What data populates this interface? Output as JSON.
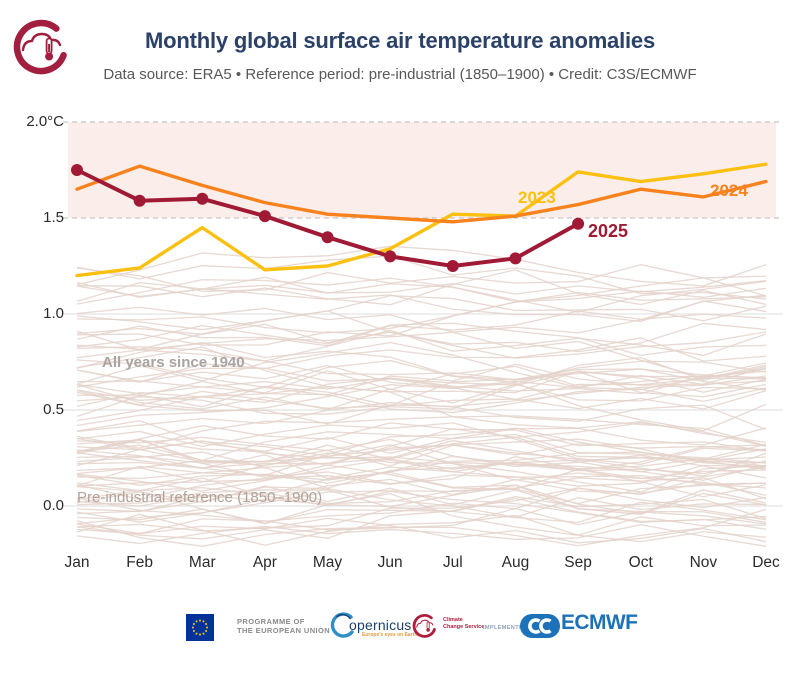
{
  "header": {
    "title": "Monthly global surface air temperature anomalies",
    "subtitle": "Data source: ERA5 • Reference period: pre-industrial (1850–1900) • Credit: C3S/ECMWF"
  },
  "chart_data": {
    "type": "line",
    "title": "Monthly global surface air temperature anomalies",
    "unit": "°C",
    "categories": [
      "Jan",
      "Feb",
      "Mar",
      "Apr",
      "May",
      "Jun",
      "Jul",
      "Aug",
      "Sep",
      "Oct",
      "Nov",
      "Dec"
    ],
    "ylim": [
      -0.25,
      2.05
    ],
    "y_ticks": [
      {
        "label": "2.0°C",
        "value": 2.0,
        "grid": "dashed"
      },
      {
        "label": "1.5",
        "value": 1.5,
        "grid": "dashed"
      },
      {
        "label": "1.0",
        "value": 1.0,
        "grid": "solid"
      },
      {
        "label": "0.5",
        "value": 0.5,
        "grid": "solid"
      },
      {
        "label": "0.0",
        "value": 0.0,
        "grid": "solid"
      }
    ],
    "shaded_band": {
      "from": 1.5,
      "to": 2.0,
      "color": "#fbeeea"
    },
    "grid_colors": {
      "dashed": "#c7c7c7",
      "solid": "#e4e4e4"
    },
    "series": [
      {
        "name": "2023",
        "color": "#fcc011",
        "width": 3.4,
        "values": [
          1.2,
          1.24,
          1.45,
          1.23,
          1.25,
          1.34,
          1.52,
          1.51,
          1.74,
          1.69,
          1.73,
          1.78
        ]
      },
      {
        "name": "2024",
        "color": "#f8821e",
        "width": 3.4,
        "values": [
          1.65,
          1.77,
          1.67,
          1.58,
          1.52,
          1.5,
          1.48,
          1.51,
          1.57,
          1.65,
          1.61,
          1.69
        ]
      },
      {
        "name": "2025",
        "color": "#a01a35",
        "width": 4,
        "markers": true,
        "marker_radius": 6,
        "values": [
          1.75,
          1.59,
          1.6,
          1.51,
          1.4,
          1.3,
          1.25,
          1.29,
          1.47
        ]
      }
    ],
    "annotations": [
      {
        "id": "all-years",
        "text": "All years since 1940"
      },
      {
        "id": "pre-industrial",
        "text": "Pre-industrial reference (1850–1900)"
      }
    ],
    "background_years": {
      "label": "All years since 1940",
      "first_year": 1940,
      "last_year": 2022,
      "count": 83,
      "color": "#e4d2ca",
      "seed": 12
    }
  },
  "footer": {
    "eu_programme_line1": "PROGRAMME OF",
    "eu_programme_line2": "THE EUROPEAN UNION",
    "copernicus_name": "opernicus",
    "copernicus_tagline": "Europe's eyes on Earth",
    "c3s_line1": "Climate",
    "c3s_line2": "Change Service",
    "implemented_by": "IMPLEMENTED BY",
    "ecmwf": "ECMWF"
  }
}
